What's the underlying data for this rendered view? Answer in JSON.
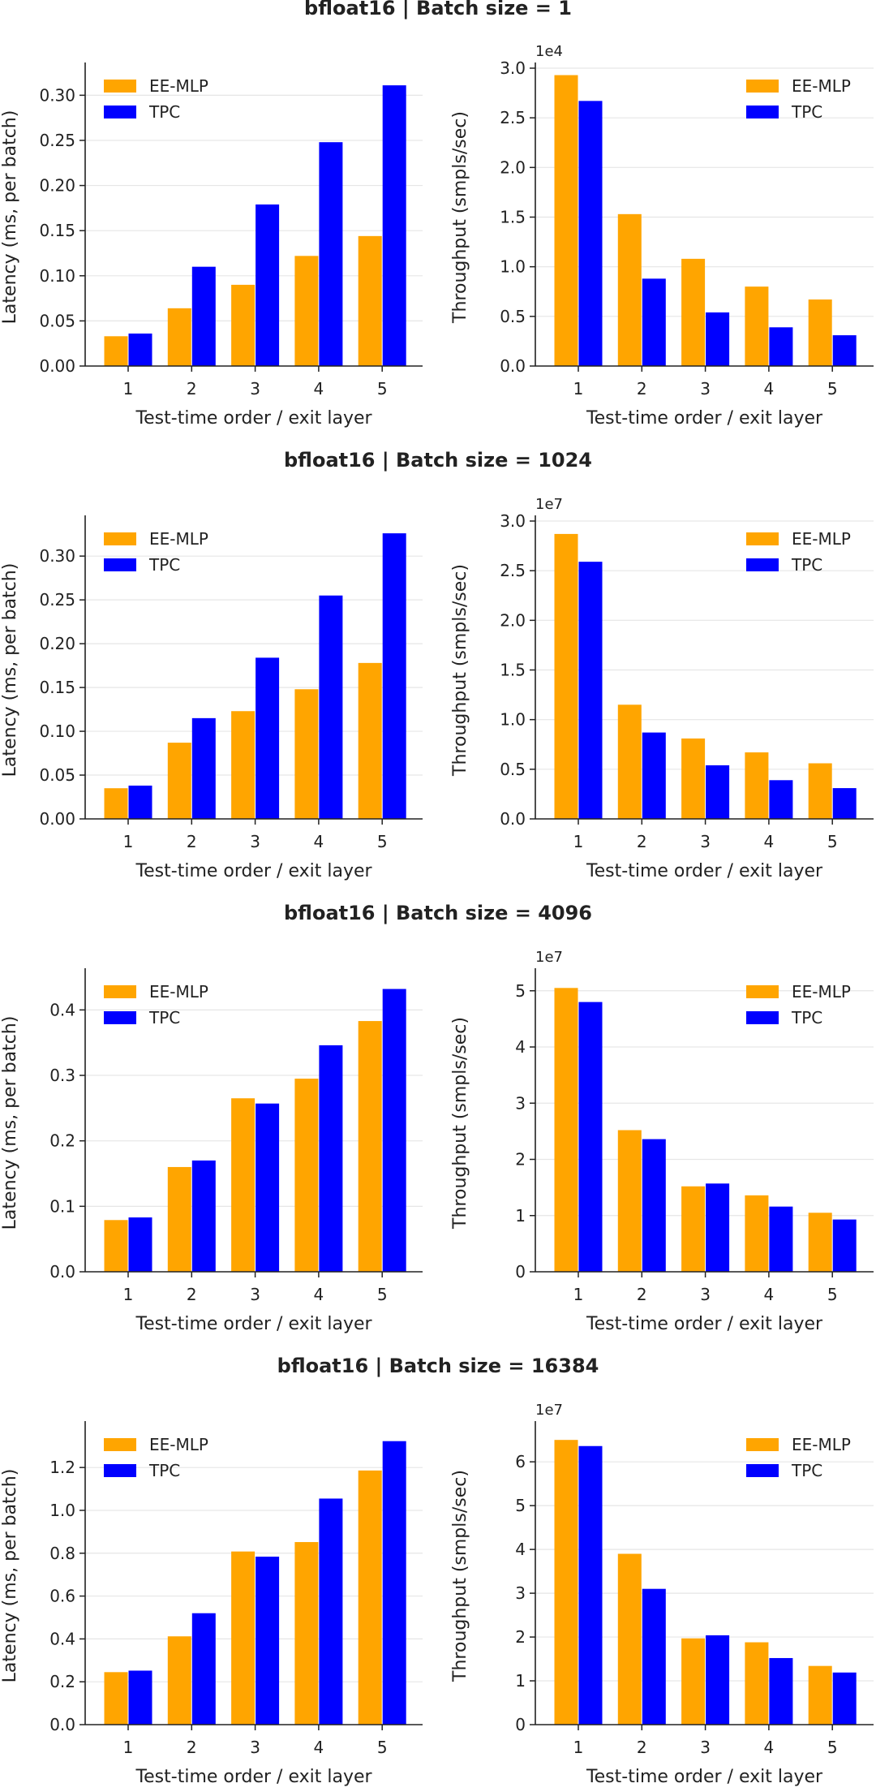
{
  "colors": {
    "ee_mlp": "#FFA500",
    "tpc": "#0000FF",
    "grid": "#e6e6e6",
    "axis": "#222222"
  },
  "sections": [
    {
      "title": "bfloat16 | Batch size = 1"
    },
    {
      "title": "bfloat16 | Batch size = 1024"
    },
    {
      "title": "bfloat16 | Batch size = 4096"
    },
    {
      "title": "bfloat16 | Batch size = 16384"
    }
  ],
  "chart_data": [
    {
      "type": "bar",
      "section": 0,
      "side": "left",
      "categories": [
        "1",
        "2",
        "3",
        "4",
        "5"
      ],
      "xlabel": "Test-time order / exit layer",
      "ylabel": "Latency (ms, per batch)",
      "ylim": [
        0,
        0.33
      ],
      "offset_text": "",
      "yticks": [
        0.0,
        0.05,
        0.1,
        0.15,
        0.2,
        0.25,
        0.3
      ],
      "ytick_labels": [
        "0.00",
        "0.05",
        "0.10",
        "0.15",
        "0.20",
        "0.25",
        "0.30"
      ],
      "legend": "top-left",
      "grid": "horizontal",
      "series": [
        {
          "name": "EE-MLP",
          "values": [
            0.033,
            0.064,
            0.09,
            0.122,
            0.144
          ]
        },
        {
          "name": "TPC",
          "values": [
            0.036,
            0.11,
            0.179,
            0.248,
            0.311
          ]
        }
      ]
    },
    {
      "type": "bar",
      "section": 0,
      "side": "right",
      "categories": [
        "1",
        "2",
        "3",
        "4",
        "5"
      ],
      "xlabel": "Test-time order / exit layer",
      "ylabel": "Throughput (smpls/sec)",
      "ylim": [
        0,
        3.0
      ],
      "offset_text": "1e4",
      "yticks": [
        0.0,
        0.5,
        1.0,
        1.5,
        2.0,
        2.5,
        3.0
      ],
      "ytick_labels": [
        "0.0",
        "0.5",
        "1.0",
        "1.5",
        "2.0",
        "2.5",
        "3.0"
      ],
      "legend": "top-right",
      "grid": "horizontal",
      "series": [
        {
          "name": "EE-MLP",
          "values": [
            2.93,
            1.53,
            1.08,
            0.8,
            0.67
          ]
        },
        {
          "name": "TPC",
          "values": [
            2.67,
            0.88,
            0.54,
            0.39,
            0.31
          ]
        }
      ]
    },
    {
      "type": "bar",
      "section": 1,
      "side": "left",
      "categories": [
        "1",
        "2",
        "3",
        "4",
        "5"
      ],
      "xlabel": "Test-time order / exit layer",
      "ylabel": "Latency (ms, per batch)",
      "ylim": [
        0,
        0.34
      ],
      "offset_text": "",
      "yticks": [
        0.0,
        0.05,
        0.1,
        0.15,
        0.2,
        0.25,
        0.3
      ],
      "ytick_labels": [
        "0.00",
        "0.05",
        "0.10",
        "0.15",
        "0.20",
        "0.25",
        "0.30"
      ],
      "legend": "top-left",
      "grid": "horizontal",
      "series": [
        {
          "name": "EE-MLP",
          "values": [
            0.035,
            0.087,
            0.123,
            0.148,
            0.178
          ]
        },
        {
          "name": "TPC",
          "values": [
            0.038,
            0.115,
            0.184,
            0.255,
            0.326
          ]
        }
      ]
    },
    {
      "type": "bar",
      "section": 1,
      "side": "right",
      "categories": [
        "1",
        "2",
        "3",
        "4",
        "5"
      ],
      "xlabel": "Test-time order / exit layer",
      "ylabel": "Throughput (smpls/sec)",
      "ylim": [
        0,
        3.0
      ],
      "offset_text": "1e7",
      "yticks": [
        0.0,
        0.5,
        1.0,
        1.5,
        2.0,
        2.5,
        3.0
      ],
      "ytick_labels": [
        "0.0",
        "0.5",
        "1.0",
        "1.5",
        "2.0",
        "2.5",
        "3.0"
      ],
      "legend": "top-right",
      "grid": "horizontal",
      "series": [
        {
          "name": "EE-MLP",
          "values": [
            2.87,
            1.15,
            0.81,
            0.67,
            0.56
          ]
        },
        {
          "name": "TPC",
          "values": [
            2.59,
            0.87,
            0.54,
            0.39,
            0.31
          ]
        }
      ]
    },
    {
      "type": "bar",
      "section": 2,
      "side": "left",
      "categories": [
        "1",
        "2",
        "3",
        "4",
        "5"
      ],
      "xlabel": "Test-time order / exit layer",
      "ylabel": "Latency (ms, per batch)",
      "ylim": [
        0,
        0.455
      ],
      "offset_text": "",
      "yticks": [
        0.0,
        0.1,
        0.2,
        0.3,
        0.4
      ],
      "ytick_labels": [
        "0.0",
        "0.1",
        "0.2",
        "0.3",
        "0.4"
      ],
      "legend": "top-left",
      "grid": "horizontal",
      "series": [
        {
          "name": "EE-MLP",
          "values": [
            0.079,
            0.16,
            0.265,
            0.295,
            0.383
          ]
        },
        {
          "name": "TPC",
          "values": [
            0.083,
            0.17,
            0.257,
            0.346,
            0.432
          ]
        }
      ]
    },
    {
      "type": "bar",
      "section": 2,
      "side": "right",
      "categories": [
        "1",
        "2",
        "3",
        "4",
        "5"
      ],
      "xlabel": "Test-time order / exit layer",
      "ylabel": "Throughput (smpls/sec)",
      "ylim": [
        0,
        5.3
      ],
      "offset_text": "1e7",
      "yticks": [
        0,
        1,
        2,
        3,
        4,
        5
      ],
      "ytick_labels": [
        "0",
        "1",
        "2",
        "3",
        "4",
        "5"
      ],
      "legend": "top-right",
      "grid": "horizontal",
      "series": [
        {
          "name": "EE-MLP",
          "values": [
            5.05,
            2.52,
            1.52,
            1.36,
            1.05
          ]
        },
        {
          "name": "TPC",
          "values": [
            4.8,
            2.36,
            1.57,
            1.16,
            0.93
          ]
        }
      ]
    },
    {
      "type": "bar",
      "section": 3,
      "side": "left",
      "categories": [
        "1",
        "2",
        "3",
        "4",
        "5"
      ],
      "xlabel": "Test-time order / exit layer",
      "ylabel": "Latency (ms, per batch)",
      "ylim": [
        0,
        1.39
      ],
      "offset_text": "",
      "yticks": [
        0.0,
        0.2,
        0.4,
        0.6,
        0.8,
        1.0,
        1.2
      ],
      "ytick_labels": [
        "0.0",
        "0.2",
        "0.4",
        "0.6",
        "0.8",
        "1.0",
        "1.2"
      ],
      "legend": "top-left",
      "grid": "horizontal",
      "series": [
        {
          "name": "EE-MLP",
          "values": [
            0.245,
            0.412,
            0.808,
            0.852,
            1.186
          ]
        },
        {
          "name": "TPC",
          "values": [
            0.252,
            0.52,
            0.784,
            1.055,
            1.323
          ]
        }
      ]
    },
    {
      "type": "bar",
      "section": 3,
      "side": "right",
      "categories": [
        "1",
        "2",
        "3",
        "4",
        "5"
      ],
      "xlabel": "Test-time order / exit layer",
      "ylabel": "Throughput (smpls/sec)",
      "ylim": [
        0,
        6.8
      ],
      "offset_text": "1e7",
      "yticks": [
        0,
        1,
        2,
        3,
        4,
        5,
        6
      ],
      "ytick_labels": [
        "0",
        "1",
        "2",
        "3",
        "4",
        "5",
        "6"
      ],
      "legend": "top-right",
      "grid": "horizontal",
      "series": [
        {
          "name": "EE-MLP",
          "values": [
            6.5,
            3.9,
            1.97,
            1.88,
            1.34
          ]
        },
        {
          "name": "TPC",
          "values": [
            6.36,
            3.1,
            2.04,
            1.52,
            1.19
          ]
        }
      ]
    }
  ]
}
